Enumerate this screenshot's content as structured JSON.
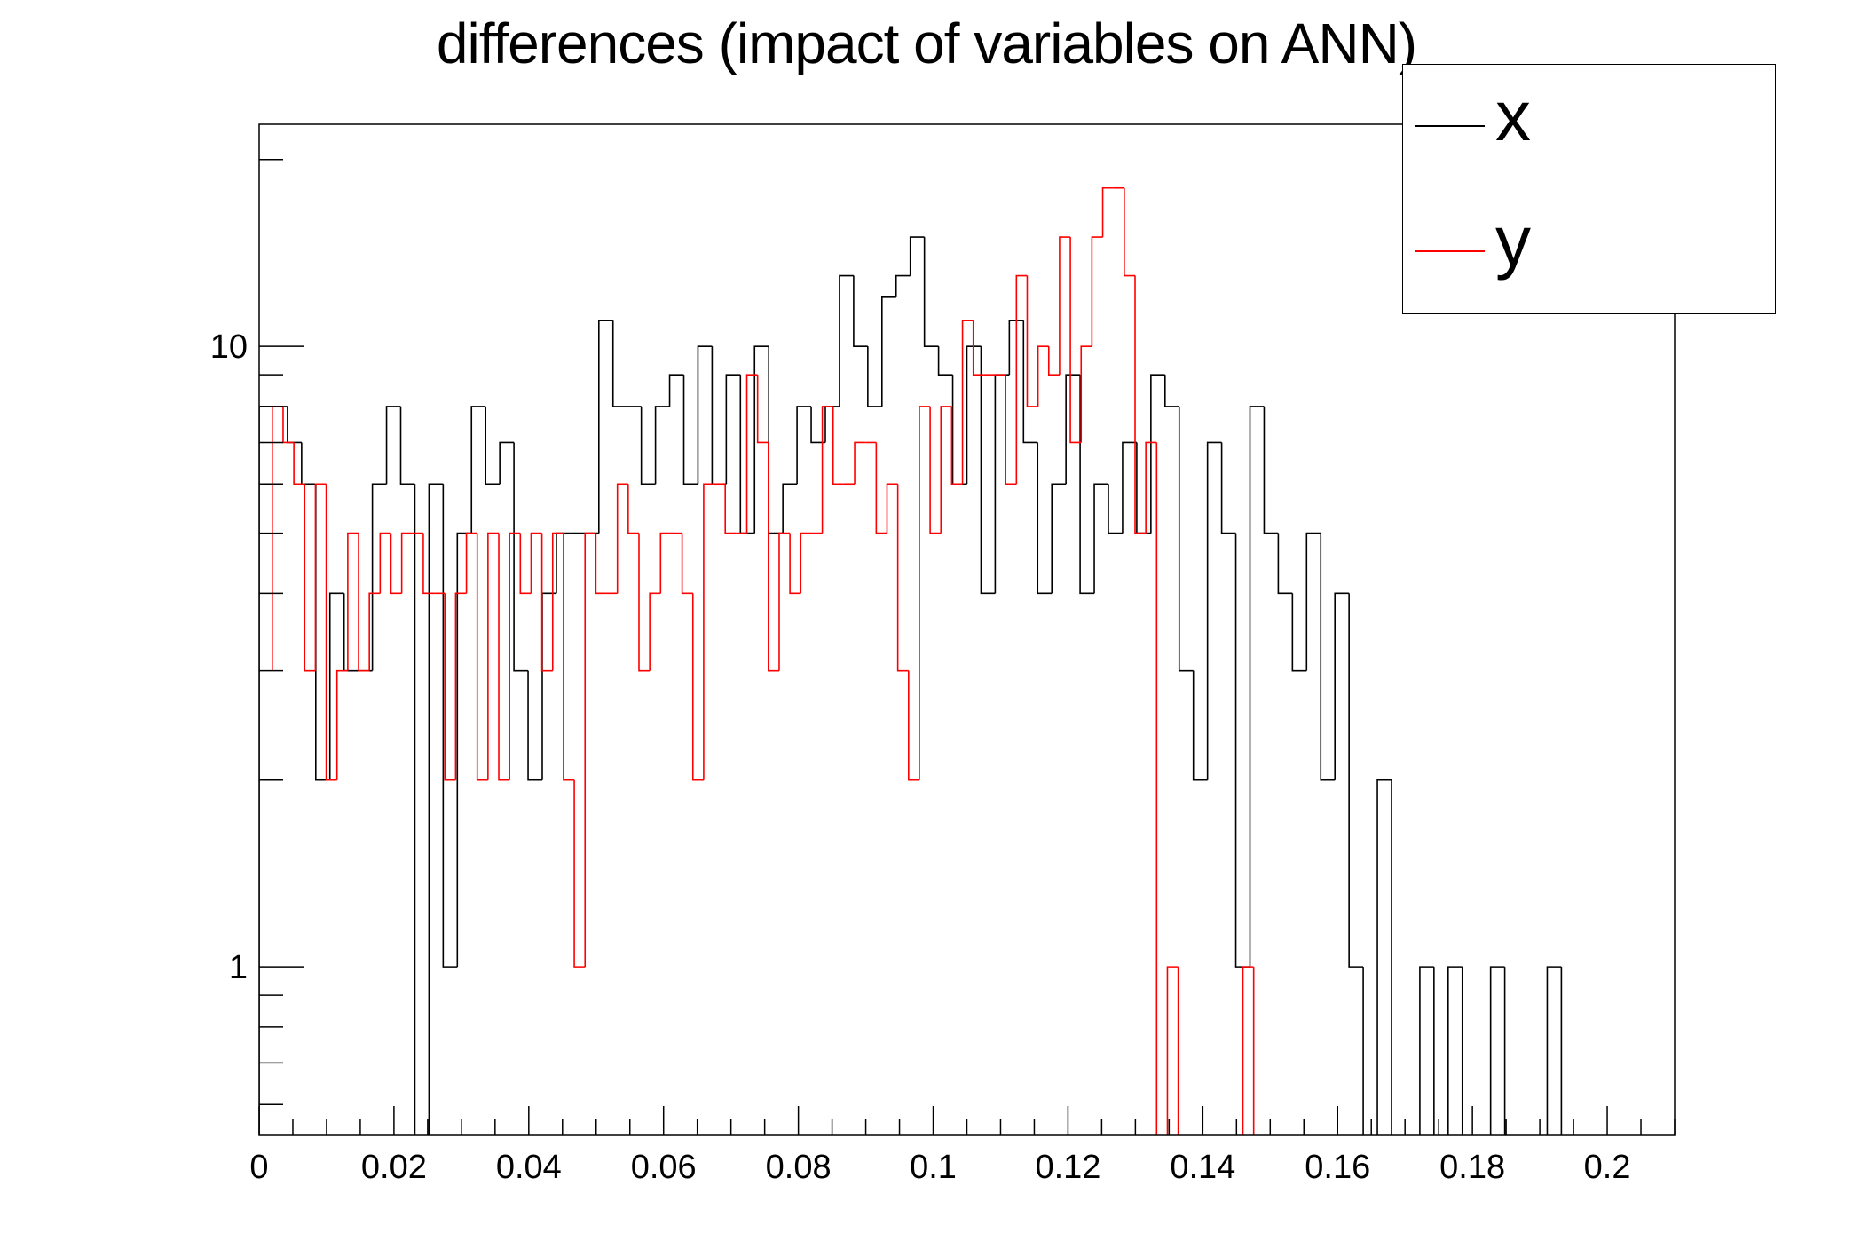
{
  "chart_data": {
    "type": "histogram",
    "title": "differences (impact of variables on ANN)",
    "xlabel": "",
    "ylabel": "",
    "xlim": [
      0,
      0.21
    ],
    "ylim": [
      0.535,
      22.8
    ],
    "yscale": "log",
    "grid": false,
    "legend_position": "top-right",
    "x_ticks": [
      "0",
      "0.02",
      "0.04",
      "0.06",
      "0.08",
      "0.1",
      "0.12",
      "0.14",
      "0.16",
      "0.18",
      "0.2"
    ],
    "y_ticks": [
      "1",
      "10"
    ],
    "series": [
      {
        "name": "x",
        "color": "#000000",
        "bin_start": 0.0,
        "bin_width": 0.0021,
        "values": [
          8,
          8,
          7,
          6,
          2,
          4,
          3,
          3,
          6,
          8,
          6,
          0,
          6,
          1,
          5,
          8,
          6,
          7,
          3,
          2,
          4,
          5,
          5,
          5,
          11,
          8,
          8,
          6,
          8,
          9,
          6,
          10,
          6,
          9,
          5,
          10,
          5,
          6,
          8,
          7,
          8,
          13,
          10,
          8,
          12,
          13,
          15,
          10,
          9,
          6,
          10,
          4,
          9,
          11,
          7,
          4,
          6,
          9,
          4,
          6,
          5,
          7,
          5,
          9,
          8,
          3,
          2,
          7,
          5,
          1,
          8,
          5,
          4,
          3,
          5,
          2,
          4,
          1,
          0,
          2,
          0,
          0,
          1,
          0,
          1,
          0,
          0,
          1,
          0,
          0,
          0,
          1,
          0,
          0,
          0,
          0,
          0,
          0,
          0,
          0
        ]
      },
      {
        "name": "y",
        "color": "#ff0000",
        "bin_start": 0.00195,
        "bin_width": 0.0016,
        "start_level": 3,
        "values": [
          8,
          7,
          6,
          3,
          6,
          2,
          3,
          5,
          3,
          4,
          5,
          4,
          5,
          5,
          4,
          4,
          2,
          4,
          5,
          2,
          5,
          2,
          5,
          4,
          5,
          3,
          5,
          2,
          1,
          5,
          4,
          4,
          6,
          5,
          3,
          4,
          5,
          5,
          4,
          2,
          6,
          6,
          5,
          5,
          9,
          7,
          3,
          5,
          4,
          5,
          5,
          8,
          6,
          6,
          7,
          7,
          5,
          6,
          3,
          2,
          8,
          5,
          8,
          6,
          11,
          9,
          9,
          9,
          6,
          13,
          8,
          10,
          9,
          15,
          7,
          10,
          15,
          18,
          18,
          13,
          5,
          7,
          0,
          1,
          0,
          0,
          0,
          0,
          0,
          0,
          1,
          0,
          0,
          0,
          0,
          0,
          0,
          0,
          0,
          0
        ]
      }
    ]
  }
}
